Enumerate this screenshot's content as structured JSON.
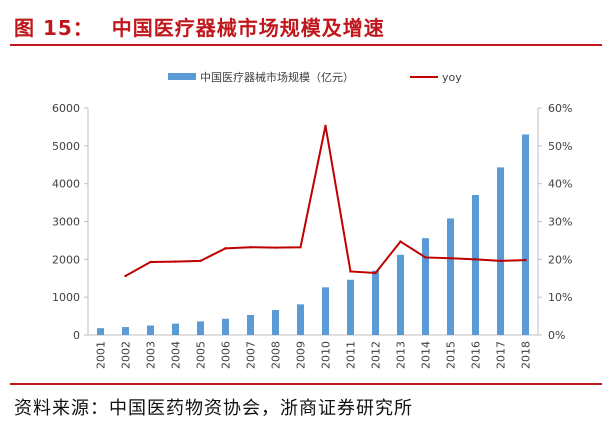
{
  "figure": {
    "label": "图 15：",
    "title": "中国医疗器械市场规模及增速"
  },
  "source": "资料来源：中国医药物资协会，浙商证券研究所",
  "colors": {
    "bar": "#5b9bd5",
    "line": "#c00000",
    "title": "#c0171c",
    "axis": "#bfbfbf",
    "text": "#404040"
  },
  "chart_data": {
    "type": "bar",
    "title": "中国医疗器械市场规模及增速",
    "categories": [
      "2001",
      "2002",
      "2003",
      "2004",
      "2005",
      "2006",
      "2007",
      "2008",
      "2009",
      "2010",
      "2011",
      "2012",
      "2013",
      "2014",
      "2015",
      "2016",
      "2017",
      "2018"
    ],
    "series": [
      {
        "name": "中国医疗器械市场规模（亿元）",
        "type": "bar",
        "axis": "left",
        "values": [
          180,
          210,
          250,
          300,
          360,
          430,
          530,
          660,
          810,
          1260,
          1460,
          1700,
          2120,
          2560,
          3080,
          3700,
          4430,
          5300
        ]
      },
      {
        "name": "yoy",
        "type": "line",
        "axis": "right",
        "values": [
          null,
          15.6,
          19.3,
          19.4,
          19.6,
          22.9,
          23.2,
          23.1,
          23.2,
          55.3,
          16.8,
          16.4,
          24.7,
          20.5,
          20.3,
          20.0,
          19.6,
          19.8
        ]
      }
    ],
    "y_left": {
      "lim": [
        0,
        6000
      ],
      "ticks": [
        "0",
        "1000",
        "2000",
        "3000",
        "4000",
        "5000",
        "6000"
      ]
    },
    "y_right": {
      "lim": [
        0,
        60
      ],
      "ticks": [
        "0%",
        "10%",
        "20%",
        "30%",
        "40%",
        "50%",
        "60%"
      ]
    },
    "legend_position": "top",
    "grid": false
  }
}
